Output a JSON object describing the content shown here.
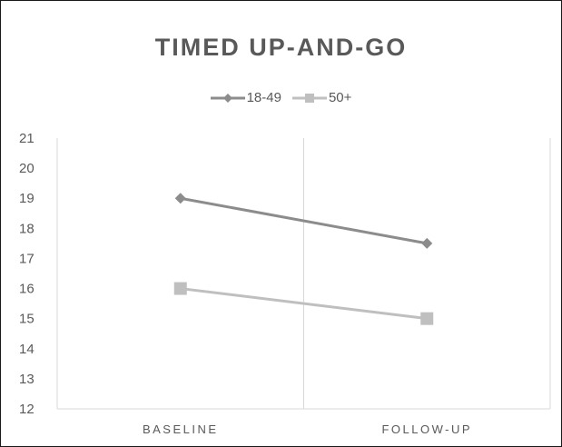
{
  "chart_data": {
    "type": "line",
    "title": "TIMED UP-AND-GO",
    "categories": [
      "BASELINE",
      "FOLLOW-UP"
    ],
    "yticks": [
      "12",
      "13",
      "14",
      "15",
      "16",
      "17",
      "18",
      "19",
      "20",
      "21"
    ],
    "ylim": [
      12,
      21
    ],
    "series": [
      {
        "name": "18-49",
        "values": [
          19,
          17.5
        ],
        "color": "#8c8c8c",
        "marker": "diamond"
      },
      {
        "name": "50+",
        "values": [
          16,
          15
        ],
        "color": "#bfbfbf",
        "marker": "square"
      }
    ],
    "grid": "vertical",
    "legend": "top"
  }
}
